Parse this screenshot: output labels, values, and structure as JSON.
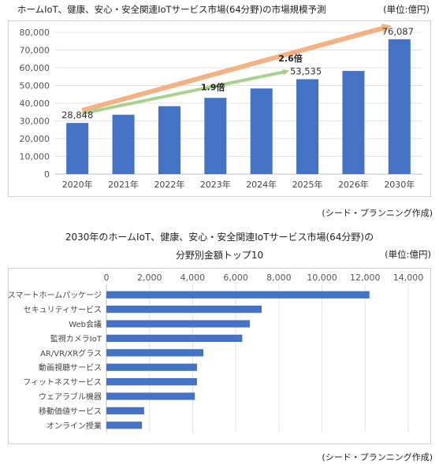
{
  "chart_data": [
    {
      "type": "bar",
      "title": "ホームIoT、健康、安心・安全関連IoTサービス市場(64分野)の市場規模予測",
      "unit": "(単位:億円)",
      "source": "(シード・プランニング作成)",
      "categories": [
        "2020年",
        "2021年",
        "2022年",
        "2023年",
        "2024年",
        "2025年",
        "2026年",
        "2030年"
      ],
      "values": [
        28848,
        33500,
        38300,
        43000,
        48300,
        53535,
        58200,
        76087
      ],
      "ylim": [
        0,
        80000
      ],
      "yticks": [
        "0",
        "10,000",
        "20,000",
        "30,000",
        "40,000",
        "50,000",
        "60,000",
        "70,000",
        "80,000"
      ],
      "data_labels": [
        {
          "index": 0,
          "text": "28,848"
        },
        {
          "index": 5,
          "text": "53,535"
        },
        {
          "index": 7,
          "text": "76,087"
        }
      ],
      "annotations": [
        {
          "text": "1.9倍",
          "from_index": 0,
          "to_index": 5,
          "color": "#a9d18e"
        },
        {
          "text": "2.6倍",
          "from_index": 0,
          "to_index": 7,
          "color": "#f4b183"
        }
      ],
      "bar_color": "#4472c4",
      "grid": true
    },
    {
      "type": "bar",
      "orientation": "horizontal",
      "title_line1": "2030年のホームIoT、健康、安心・安全関連IoTサービス市場(64分野)の",
      "title_line2": "分野別金額トップ10",
      "unit": "(単位:億円)",
      "source": "(シード・プランニング作成)",
      "categories": [
        "スマートホームパッケージ",
        "セキュリティサービス",
        "Web会議",
        "監視カメラIoT",
        "AR/VR/XRグラス",
        "動画視聴サービス",
        "フィットネスサービス",
        "ウェアラブル機器",
        "移動価値サービス",
        "オンライン授業"
      ],
      "values": [
        12200,
        7200,
        6650,
        6300,
        4500,
        4200,
        4200,
        4100,
        1750,
        1650
      ],
      "xlim": [
        0,
        14000
      ],
      "xticks": [
        "0",
        "2,000",
        "4,000",
        "6,000",
        "8,000",
        "10,000",
        "12,000",
        "14,000"
      ],
      "bar_color": "#4472c4",
      "grid": true
    }
  ]
}
